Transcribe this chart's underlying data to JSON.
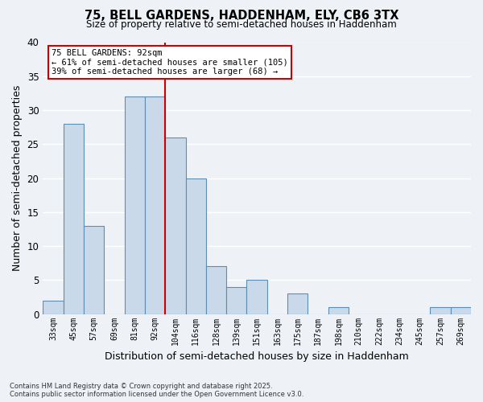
{
  "title": "75, BELL GARDENS, HADDENHAM, ELY, CB6 3TX",
  "subtitle": "Size of property relative to semi-detached houses in Haddenham",
  "xlabel": "Distribution of semi-detached houses by size in Haddenham",
  "ylabel": "Number of semi-detached properties",
  "bar_labels": [
    "33sqm",
    "45sqm",
    "57sqm",
    "69sqm",
    "81sqm",
    "92sqm",
    "104sqm",
    "116sqm",
    "128sqm",
    "139sqm",
    "151sqm",
    "163sqm",
    "175sqm",
    "187sqm",
    "198sqm",
    "210sqm",
    "222sqm",
    "234sqm",
    "245sqm",
    "257sqm",
    "269sqm"
  ],
  "bar_values": [
    2,
    28,
    13,
    0,
    32,
    32,
    26,
    20,
    7,
    4,
    5,
    0,
    3,
    0,
    1,
    0,
    0,
    0,
    0,
    1,
    1
  ],
  "bar_color": "#c9d9ea",
  "bar_edge_color": "#5b8db5",
  "vline_index": 5,
  "vline_color": "#cc0000",
  "annotation_title": "75 BELL GARDENS: 92sqm",
  "annotation_line1": "← 61% of semi-detached houses are smaller (105)",
  "annotation_line2": "39% of semi-detached houses are larger (68) →",
  "annotation_box_color": "#ffffff",
  "annotation_box_edge": "#cc0000",
  "ylim": [
    0,
    40
  ],
  "yticks": [
    0,
    5,
    10,
    15,
    20,
    25,
    30,
    35,
    40
  ],
  "background_color": "#eef2f7",
  "grid_color": "#ffffff",
  "footer_line1": "Contains HM Land Registry data © Crown copyright and database right 2025.",
  "footer_line2": "Contains public sector information licensed under the Open Government Licence v3.0."
}
